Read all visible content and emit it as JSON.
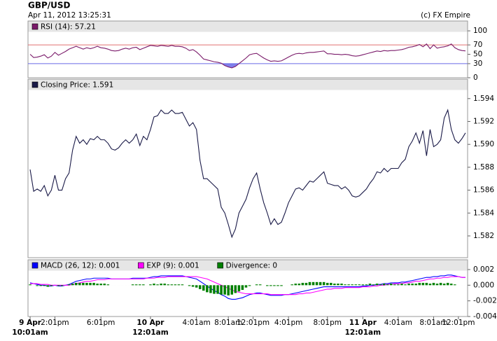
{
  "header": {
    "title": "GBP/USD",
    "date": "Apr 11, 2012 13:25:31",
    "credit": "(c) FX Empire"
  },
  "chart_data": [
    {
      "type": "line",
      "ylim": [
        0,
        121
      ],
      "yticks": [
        0,
        30,
        50,
        70,
        100
      ],
      "levels": [
        {
          "value": 70,
          "color": "#e07070"
        },
        {
          "value": 30,
          "color": "#6a6ae8"
        }
      ],
      "series": [
        {
          "name": "RSI (14): 57.21",
          "color": "#7a1a6a",
          "values": [
            50,
            43,
            44,
            46,
            49,
            42,
            46,
            54,
            48,
            52,
            56,
            61,
            64,
            67,
            64,
            61,
            64,
            62,
            64,
            67,
            64,
            63,
            61,
            58,
            57,
            58,
            61,
            63,
            61,
            64,
            65,
            60,
            63,
            66,
            69,
            68,
            67,
            69,
            68,
            67,
            69,
            67,
            67,
            66,
            63,
            58,
            60,
            55,
            48,
            40,
            38,
            36,
            34,
            33,
            31,
            26,
            23,
            21,
            24,
            30,
            36,
            42,
            49,
            51,
            52,
            47,
            42,
            38,
            35,
            36,
            35,
            36,
            40,
            44,
            48,
            51,
            52,
            51,
            53,
            54,
            54,
            55,
            56,
            57,
            51,
            51,
            50,
            50,
            49,
            50,
            49,
            47,
            46,
            47,
            49,
            51,
            53,
            55,
            57,
            56,
            58,
            57,
            58,
            58,
            59,
            60,
            62,
            65,
            66,
            68,
            71,
            66,
            72,
            62,
            70,
            63,
            65,
            66,
            68,
            72,
            64,
            60,
            58,
            57.21
          ]
        }
      ]
    },
    {
      "type": "line",
      "ylim": [
        1.5801,
        1.5957
      ],
      "yticks": [
        1.582,
        1.584,
        1.586,
        1.588,
        {
          "value": 1.59,
          "label": "1.590"
        },
        1.592,
        1.594
      ],
      "series": [
        {
          "name": "Closing Price: 1.591",
          "color": "#1a1a48",
          "values": [
            1.5878,
            1.5859,
            1.5861,
            1.5859,
            1.5864,
            1.5855,
            1.586,
            1.5873,
            1.586,
            1.586,
            1.587,
            1.5875,
            1.5895,
            1.5907,
            1.5901,
            1.5904,
            1.59,
            1.5905,
            1.5904,
            1.5907,
            1.5904,
            1.5904,
            1.5901,
            1.5896,
            1.5895,
            1.5897,
            1.5901,
            1.5904,
            1.5901,
            1.5904,
            1.5909,
            1.5899,
            1.5907,
            1.5904,
            1.5913,
            1.5924,
            1.5925,
            1.593,
            1.5927,
            1.5927,
            1.593,
            1.5927,
            1.5927,
            1.5928,
            1.5922,
            1.5916,
            1.5919,
            1.5913,
            1.5886,
            1.587,
            1.587,
            1.5867,
            1.5864,
            1.5861,
            1.5845,
            1.584,
            1.583,
            1.5819,
            1.5826,
            1.584,
            1.5846,
            1.5852,
            1.5862,
            1.587,
            1.5875,
            1.5861,
            1.5849,
            1.584,
            1.583,
            1.5835,
            1.583,
            1.5832,
            1.584,
            1.5849,
            1.5855,
            1.5861,
            1.5862,
            1.586,
            1.5864,
            1.5868,
            1.5867,
            1.587,
            1.5873,
            1.5876,
            1.5866,
            1.5865,
            1.5864,
            1.5864,
            1.5861,
            1.5863,
            1.586,
            1.5855,
            1.5854,
            1.5855,
            1.5858,
            1.5861,
            1.5866,
            1.587,
            1.5876,
            1.5875,
            1.5879,
            1.5876,
            1.5879,
            1.5879,
            1.5879,
            1.5884,
            1.5887,
            1.5898,
            1.5903,
            1.591,
            1.5901,
            1.5912,
            1.589,
            1.5913,
            1.5898,
            1.59,
            1.5904,
            1.5923,
            1.593,
            1.5913,
            1.5904,
            1.5901,
            1.5905,
            1.591
          ]
        }
      ]
    },
    {
      "type": "line",
      "ylim": [
        -0.004,
        0.00325
      ],
      "yticks": [
        -0.004,
        -0.002,
        {
          "value": 0,
          "label": "0.000"
        },
        0.002
      ],
      "xlim": [
        -0.6,
        123.6
      ],
      "xticks": [
        {
          "value": 0,
          "label": "9 Apr\n10:01am"
        },
        {
          "value": 7,
          "label": "2:01pm"
        },
        {
          "value": 20,
          "label": "6:01pm"
        },
        {
          "value": 34,
          "label": "10 Apr\n12:01am"
        },
        {
          "value": 47,
          "label": "4:01am"
        },
        {
          "value": 56,
          "label": "8:01am"
        },
        {
          "value": 63,
          "label": "12:01pm"
        },
        {
          "value": 73,
          "label": "4:01pm"
        },
        {
          "value": 84,
          "label": "8:01pm"
        },
        {
          "value": 94,
          "label": "11 Apr\n12:01am"
        },
        {
          "value": 104,
          "label": "4:01am"
        },
        {
          "value": 114,
          "label": "8:01am"
        },
        {
          "value": 121,
          "label": "12:01pm"
        }
      ],
      "series": [
        {
          "name": "MACD (26, 12): 0.001",
          "color": "#0000ff",
          "values": [
            0.0003,
            0.0002,
            0.0001,
            0,
            0,
            -0.0001,
            -0.0001,
            0,
            -0.0001,
            -0.0001,
            0,
            0.0001,
            0.0003,
            0.0005,
            0.0006,
            0.0007,
            0.0008,
            0.0008,
            0.0009,
            0.0009,
            0.0009,
            0.0009,
            0.0009,
            0.0008,
            0.0008,
            0.0008,
            0.0008,
            0.0008,
            0.0008,
            0.0009,
            0.0009,
            0.0009,
            0.0009,
            0.0009,
            0.001,
            0.0011,
            0.0011,
            0.0012,
            0.0012,
            0.0012,
            0.0012,
            0.0012,
            0.0012,
            0.0012,
            0.0011,
            0.001,
            0.0009,
            0.0008,
            0.0005,
            0.0002,
            -0.0001,
            -0.0004,
            -0.0007,
            -0.0009,
            -0.0012,
            -0.0014,
            -0.0017,
            -0.0018,
            -0.0018,
            -0.0017,
            -0.0016,
            -0.0014,
            -0.0012,
            -0.0011,
            -0.001,
            -0.001,
            -0.0011,
            -0.0012,
            -0.0013,
            -0.0013,
            -0.0013,
            -0.0013,
            -0.0012,
            -0.0012,
            -0.0011,
            -0.001,
            -0.0009,
            -0.0008,
            -0.0007,
            -0.0006,
            -0.0005,
            -0.0004,
            -0.0003,
            -0.0002,
            -0.0002,
            -0.0002,
            -0.0002,
            -0.0002,
            -0.0002,
            -0.0002,
            -0.0002,
            -0.0002,
            -0.0002,
            -0.0002,
            -0.0001,
            -0.0001,
            0,
            0,
            0.0001,
            0.0001,
            0.0002,
            0.0002,
            0.0003,
            0.0003,
            0.0003,
            0.0004,
            0.0004,
            0.0005,
            0.0006,
            0.0007,
            0.0008,
            0.0009,
            0.001,
            0.001,
            0.0011,
            0.0011,
            0.0012,
            0.0012,
            0.0013,
            0.0013,
            0.0012,
            0.0011,
            0.001,
            0.001
          ]
        },
        {
          "name": "EXP (9): 0.001",
          "color": "#ff00ff",
          "values": [
            0.0002,
            0.0002,
            0.0002,
            0.0001,
            0.0001,
            0.0001,
            0,
            0,
            0,
            0,
            0,
            0,
            0.0001,
            0.0002,
            0.0003,
            0.0004,
            0.0005,
            0.0005,
            0.0006,
            0.0007,
            0.0007,
            0.0007,
            0.0008,
            0.0008,
            0.0008,
            0.0008,
            0.0008,
            0.0008,
            0.0008,
            0.0008,
            0.0008,
            0.0008,
            0.0008,
            0.0009,
            0.0009,
            0.0009,
            0.001,
            0.001,
            0.001,
            0.0011,
            0.0011,
            0.0011,
            0.0011,
            0.0011,
            0.0011,
            0.0011,
            0.0011,
            0.0011,
            0.001,
            0.0009,
            0.0008,
            0.0006,
            0.0004,
            0.0002,
            0,
            -0.0002,
            -0.0004,
            -0.0006,
            -0.0008,
            -0.0009,
            -0.001,
            -0.0011,
            -0.0011,
            -0.0011,
            -0.0011,
            -0.0011,
            -0.0011,
            -0.0011,
            -0.0012,
            -0.0012,
            -0.0012,
            -0.0012,
            -0.0012,
            -0.0012,
            -0.0012,
            -0.0012,
            -0.0011,
            -0.0011,
            -0.001,
            -0.001,
            -0.0009,
            -0.0008,
            -0.0007,
            -0.0006,
            -0.0005,
            -0.0005,
            -0.0004,
            -0.0004,
            -0.0004,
            -0.0003,
            -0.0003,
            -0.0003,
            -0.0003,
            -0.0003,
            -0.0002,
            -0.0002,
            -0.0002,
            -0.0001,
            -0.0001,
            0,
            0,
            0.0001,
            0.0001,
            0.0002,
            0.0002,
            0.0002,
            0.0003,
            0.0003,
            0.0004,
            0.0005,
            0.0005,
            0.0006,
            0.0007,
            0.0008,
            0.0008,
            0.0009,
            0.0009,
            0.001,
            0.001,
            0.0011,
            0.0011,
            0.0011,
            0.001,
            0.001
          ]
        },
        {
          "name": "Divergence: 0",
          "color": "#008000",
          "type": "bar",
          "values": [
            0.0001,
            0,
            -0.0001,
            -0.0001,
            -0.0001,
            -0.0002,
            -0.0001,
            0,
            -0.0001,
            -0.0001,
            0,
            0.0001,
            0.0002,
            0.0003,
            0.0003,
            0.0003,
            0.0003,
            0.0003,
            0.0003,
            0.0002,
            0.0002,
            0.0002,
            0.0001,
            0,
            0,
            0,
            0,
            0,
            0,
            0.0001,
            0.0001,
            0.0001,
            0.0001,
            0,
            0.0001,
            0.0002,
            0.0001,
            0.0002,
            0.0002,
            0.0001,
            0.0001,
            0.0001,
            0.0001,
            0.0001,
            0,
            -0.0001,
            -0.0002,
            -0.0003,
            -0.0005,
            -0.0007,
            -0.0009,
            -0.001,
            -0.0011,
            -0.0011,
            -0.0012,
            -0.0012,
            -0.0013,
            -0.0012,
            -0.001,
            -0.0008,
            -0.0006,
            -0.0003,
            -0.0001,
            0,
            0.0001,
            0.0001,
            0,
            -0.0001,
            -0.0001,
            -0.0001,
            -0.0001,
            -0.0001,
            0,
            0,
            0.0001,
            0.0002,
            0.0002,
            0.0003,
            0.0003,
            0.0004,
            0.0004,
            0.0004,
            0.0004,
            0.0004,
            0.0003,
            0.0003,
            0.0002,
            0.0002,
            0.0002,
            0.0001,
            0.0001,
            0.0001,
            0.0001,
            0.0001,
            0.0001,
            0.0001,
            0.0002,
            0.0001,
            0.0002,
            0.0001,
            0.0002,
            0.0001,
            0.0002,
            0.0001,
            0.0001,
            0.0002,
            0.0001,
            0.0002,
            0.0002,
            0.0002,
            0.0003,
            0.0003,
            0.0003,
            0.0002,
            0.0003,
            0.0002,
            0.0003,
            0.0002,
            0.0003,
            0.0002,
            0.0001,
            0,
            0,
            0
          ]
        }
      ]
    }
  ]
}
